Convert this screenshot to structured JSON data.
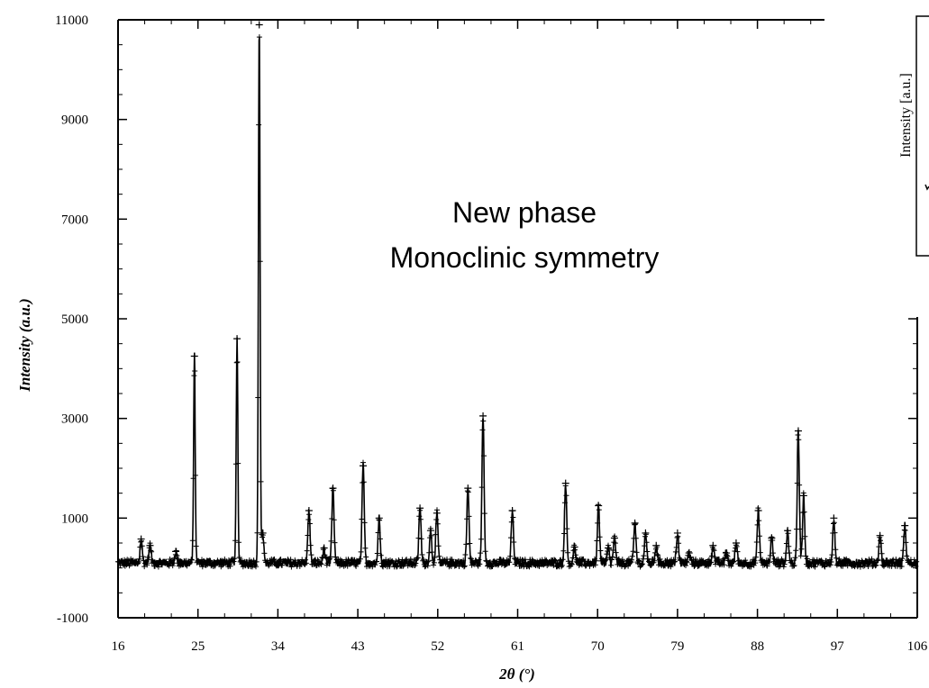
{
  "chart_data": {
    "type": "line",
    "xlabel": "2θ (°)",
    "ylabel": "Intensity (a.u.)",
    "xlim": [
      16,
      106
    ],
    "ylim": [
      -1000,
      11000
    ],
    "x_ticks": [
      16,
      25,
      34,
      43,
      52,
      61,
      70,
      79,
      88,
      97,
      106
    ],
    "y_ticks": [
      -1000,
      1000,
      3000,
      5000,
      7000,
      9000,
      11000
    ],
    "x_tick_labels": [
      "16",
      "25",
      "34",
      "43",
      "52",
      "61",
      "70",
      "79",
      "88",
      "97",
      "106"
    ],
    "y_tick_labels": [
      "-1000",
      "1000",
      "3000",
      "5000",
      "7000",
      "9000",
      "11000"
    ],
    "annotation": [
      "New phase",
      "Monoclinic symmetry"
    ],
    "inset_ylabel": "Intensity [a.u.]",
    "baseline": 100,
    "series": [
      {
        "style": "crosses",
        "peaks": [
          {
            "x": 18.6,
            "y": 580
          },
          {
            "x": 19.6,
            "y": 450
          },
          {
            "x": 22.5,
            "y": 330
          },
          {
            "x": 24.6,
            "y": 4250
          },
          {
            "x": 29.4,
            "y": 4600
          },
          {
            "x": 31.9,
            "y": 10900
          },
          {
            "x": 32.3,
            "y": 700
          },
          {
            "x": 37.5,
            "y": 1150
          },
          {
            "x": 39.2,
            "y": 400
          },
          {
            "x": 40.2,
            "y": 1600
          },
          {
            "x": 43.6,
            "y": 2050
          },
          {
            "x": 45.4,
            "y": 1000
          },
          {
            "x": 50.0,
            "y": 1200
          },
          {
            "x": 51.2,
            "y": 750
          },
          {
            "x": 51.9,
            "y": 1100
          },
          {
            "x": 55.4,
            "y": 1600
          },
          {
            "x": 57.1,
            "y": 3050
          },
          {
            "x": 60.4,
            "y": 1150
          },
          {
            "x": 66.4,
            "y": 1700
          },
          {
            "x": 67.4,
            "y": 420
          },
          {
            "x": 70.1,
            "y": 1250
          },
          {
            "x": 71.2,
            "y": 400
          },
          {
            "x": 71.9,
            "y": 600
          },
          {
            "x": 74.2,
            "y": 900
          },
          {
            "x": 75.4,
            "y": 700
          },
          {
            "x": 76.6,
            "y": 450
          },
          {
            "x": 79.0,
            "y": 700
          },
          {
            "x": 80.3,
            "y": 300
          },
          {
            "x": 83.0,
            "y": 450
          },
          {
            "x": 84.5,
            "y": 300
          },
          {
            "x": 85.6,
            "y": 500
          },
          {
            "x": 88.1,
            "y": 1150
          },
          {
            "x": 89.6,
            "y": 600
          },
          {
            "x": 91.4,
            "y": 750
          },
          {
            "x": 92.6,
            "y": 2750
          },
          {
            "x": 93.2,
            "y": 1450
          },
          {
            "x": 96.6,
            "y": 1000
          },
          {
            "x": 101.8,
            "y": 650
          },
          {
            "x": 104.6,
            "y": 850
          }
        ]
      }
    ]
  }
}
